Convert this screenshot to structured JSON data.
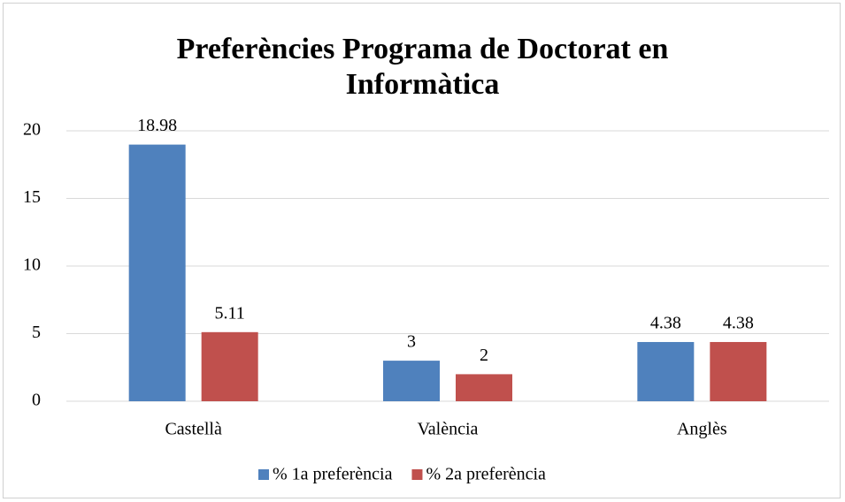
{
  "chart_data": {
    "type": "bar",
    "title": "Preferències Programa de Doctorat en Informàtica",
    "categories": [
      "Castellà",
      "València",
      "Anglès"
    ],
    "series": [
      {
        "name": "% 1a preferència",
        "color": "#4f81bd",
        "values": [
          18.98,
          3,
          4.38
        ]
      },
      {
        "name": "% 2a preferència",
        "color": "#c0504d",
        "values": [
          5.11,
          2,
          4.38
        ]
      }
    ],
    "ylim": [
      0,
      20
    ],
    "yticks": [
      0,
      5,
      10,
      15,
      20
    ],
    "grid": true,
    "legend": "bottom"
  }
}
